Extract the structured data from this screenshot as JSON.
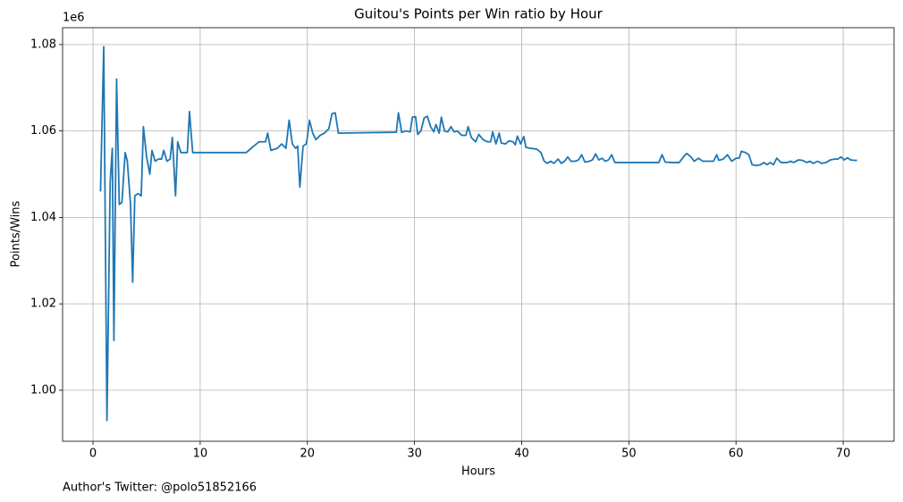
{
  "chart_data": {
    "type": "line",
    "title": "Guitou's Points per Win ratio by Hour",
    "x_label": "Hours",
    "y_label": "Points/Wins",
    "y_offset_label": "1e6",
    "footnote": "Author's Twitter: @polo51852166",
    "color": "#1f77b4",
    "grid": true,
    "xlim": [
      -2.84,
      74.75
    ],
    "xticks": [
      0,
      10,
      20,
      30,
      40,
      50,
      60,
      70
    ],
    "ylim": [
      0.9882,
      1.0839
    ],
    "yticks": [
      {
        "value": 1.0,
        "label": "1.00"
      },
      1.02,
      1.04,
      1.06,
      1.08
    ],
    "x": [
      0.7,
      1.0,
      1.3,
      1.6,
      1.8,
      1.95,
      2.2,
      2.45,
      2.7,
      3.0,
      3.2,
      3.5,
      3.7,
      3.9,
      4.2,
      4.5,
      4.7,
      5.0,
      5.3,
      5.5,
      5.8,
      6.1,
      6.4,
      6.6,
      6.9,
      7.2,
      7.4,
      7.7,
      7.9,
      8.2,
      8.5,
      8.8,
      9.0,
      9.3,
      14.3,
      15.0,
      15.5,
      16.1,
      16.3,
      16.6,
      17.2,
      17.6,
      18.0,
      18.3,
      18.6,
      18.9,
      19.1,
      19.3,
      19.6,
      19.9,
      20.0,
      20.2,
      20.5,
      20.8,
      21.2,
      21.6,
      22.0,
      22.3,
      22.6,
      22.9,
      28.3,
      28.5,
      28.8,
      29.2,
      29.6,
      29.8,
      30.1,
      30.3,
      30.6,
      30.9,
      31.2,
      31.5,
      31.8,
      32.0,
      32.3,
      32.5,
      32.8,
      33.1,
      33.4,
      33.7,
      34.0,
      34.4,
      34.8,
      35.0,
      35.3,
      35.7,
      36.0,
      36.4,
      36.8,
      37.1,
      37.3,
      37.6,
      37.9,
      38.1,
      38.5,
      38.8,
      39.2,
      39.4,
      39.6,
      39.9,
      40.2,
      40.4,
      40.8,
      41.4,
      41.8,
      42.1,
      42.4,
      42.7,
      43.0,
      43.4,
      43.7,
      44.0,
      44.3,
      44.6,
      45.0,
      45.3,
      45.6,
      45.9,
      46.3,
      46.6,
      46.9,
      47.2,
      47.5,
      47.8,
      48.1,
      48.4,
      48.7,
      52.8,
      53.1,
      53.4,
      54.0,
      54.7,
      55.1,
      55.4,
      55.8,
      56.1,
      56.5,
      56.9,
      57.4,
      57.9,
      58.2,
      58.4,
      58.8,
      59.2,
      59.6,
      60.0,
      60.3,
      60.5,
      60.9,
      61.2,
      61.5,
      61.9,
      62.3,
      62.6,
      62.9,
      63.2,
      63.5,
      63.8,
      64.2,
      64.5,
      64.8,
      65.1,
      65.4,
      65.8,
      66.2,
      66.6,
      66.9,
      67.2,
      67.6,
      68.0,
      68.4,
      68.8,
      69.2,
      69.5,
      69.8,
      70.1,
      70.4,
      70.7,
      71.0,
      71.3
    ],
    "values": [
      1.046,
      1.0795,
      0.993,
      1.048,
      1.056,
      1.0115,
      1.072,
      1.043,
      1.0435,
      1.055,
      1.053,
      1.043,
      1.025,
      1.045,
      1.0455,
      1.045,
      1.061,
      1.054,
      1.05,
      1.0555,
      1.053,
      1.0535,
      1.0535,
      1.0555,
      1.053,
      1.0535,
      1.0585,
      1.045,
      1.0575,
      1.055,
      1.055,
      1.055,
      1.0645,
      1.055,
      1.055,
      1.0565,
      1.0575,
      1.0575,
      1.0595,
      1.0555,
      1.056,
      1.057,
      1.056,
      1.0625,
      1.057,
      1.056,
      1.0565,
      1.047,
      1.0565,
      1.057,
      1.0585,
      1.0625,
      1.0595,
      1.058,
      1.059,
      1.0595,
      1.0605,
      1.064,
      1.0642,
      1.0595,
      1.0597,
      1.0642,
      1.0597,
      1.06,
      1.0598,
      1.0632,
      1.0633,
      1.0592,
      1.06,
      1.063,
      1.0634,
      1.061,
      1.0598,
      1.0615,
      1.0595,
      1.0632,
      1.06,
      1.0598,
      1.061,
      1.0598,
      1.06,
      1.059,
      1.059,
      1.061,
      1.0585,
      1.0575,
      1.0592,
      1.058,
      1.0575,
      1.0575,
      1.0598,
      1.057,
      1.0595,
      1.0572,
      1.057,
      1.0577,
      1.0575,
      1.0568,
      1.0588,
      1.057,
      1.0587,
      1.0562,
      1.056,
      1.0558,
      1.055,
      1.053,
      1.0525,
      1.053,
      1.0525,
      1.0535,
      1.0525,
      1.053,
      1.054,
      1.053,
      1.053,
      1.0533,
      1.0545,
      1.0528,
      1.053,
      1.0533,
      1.0547,
      1.0533,
      1.0537,
      1.053,
      1.0533,
      1.0545,
      1.0527,
      1.0527,
      1.0545,
      1.0528,
      1.0527,
      1.0527,
      1.054,
      1.0548,
      1.054,
      1.053,
      1.0537,
      1.053,
      1.053,
      1.053,
      1.0545,
      1.0532,
      1.0535,
      1.0545,
      1.053,
      1.0537,
      1.0537,
      1.0553,
      1.055,
      1.0545,
      1.0522,
      1.052,
      1.0522,
      1.0527,
      1.0522,
      1.0527,
      1.0522,
      1.0537,
      1.0527,
      1.0527,
      1.0527,
      1.053,
      1.0527,
      1.0533,
      1.0532,
      1.0527,
      1.053,
      1.0525,
      1.053,
      1.0525,
      1.0527,
      1.0533,
      1.0535,
      1.0535,
      1.054,
      1.0533,
      1.0538,
      1.0533,
      1.0532,
      1.0532
    ]
  }
}
